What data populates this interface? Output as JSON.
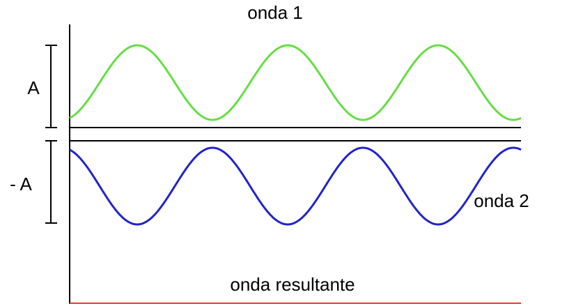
{
  "labels": {
    "wave1": "onda 1",
    "amplitude": "A",
    "neg_amplitude": "- A",
    "wave2": "onda 2",
    "result": "onda resultante"
  }
}
